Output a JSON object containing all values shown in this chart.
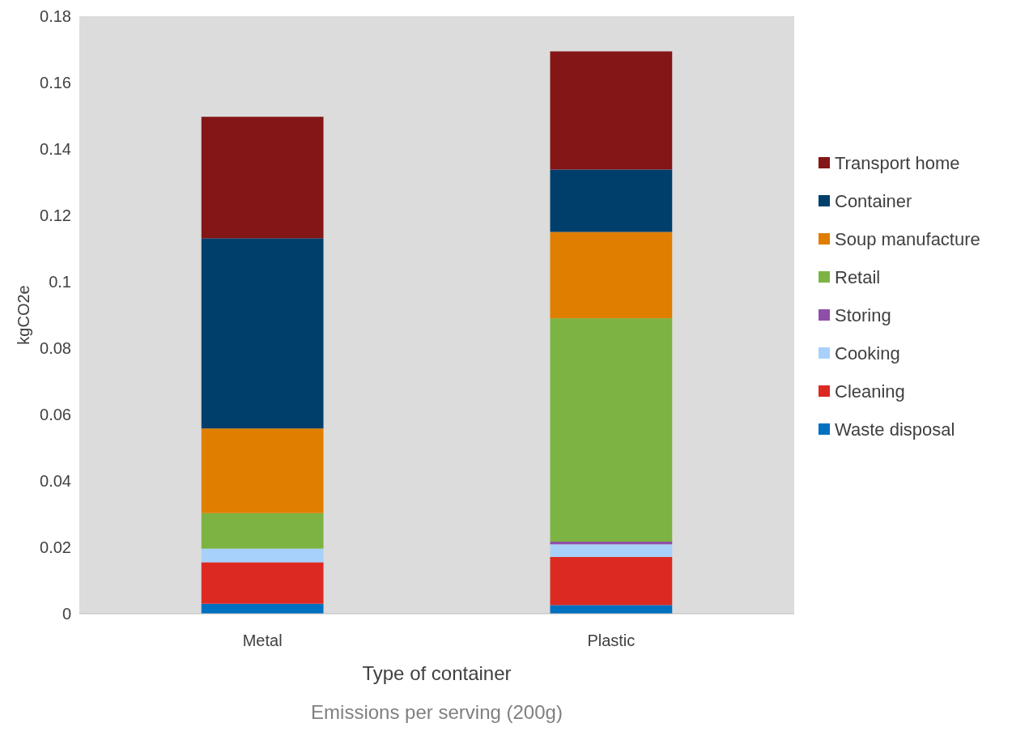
{
  "chart_data": {
    "type": "bar",
    "stacked": true,
    "xlabel": "Type of container",
    "ylabel": "kgCO2e",
    "categories": [
      "Metal",
      "Plastic"
    ],
    "series": [
      {
        "name": "Waste disposal",
        "color": "#0070c0",
        "values": [
          0.003,
          0.0026
        ]
      },
      {
        "name": "Cleaning",
        "color": "#dc2a22",
        "values": [
          0.0125,
          0.0145
        ]
      },
      {
        "name": "Cooking",
        "color": "#a7d1fa",
        "values": [
          0.0041,
          0.0038
        ]
      },
      {
        "name": "Storing",
        "color": "#8f4fa8",
        "values": [
          0,
          0.0008
        ]
      },
      {
        "name": "Retail",
        "color": "#7db343",
        "values": [
          0.0107,
          0.0673
        ]
      },
      {
        "name": "Soup manufacture",
        "color": "#e07e00",
        "values": [
          0.0255,
          0.026
        ]
      },
      {
        "name": "Container",
        "color": "#003f6b",
        "values": [
          0.0573,
          0.0188
        ]
      },
      {
        "name": "Transport home",
        "color": "#841617",
        "values": [
          0.0366,
          0.0356
        ]
      }
    ],
    "ylim": [
      0,
      0.18
    ],
    "yticks": [
      0,
      0.02,
      0.04,
      0.06,
      0.08,
      0.1,
      0.12,
      0.14,
      0.16,
      0.18
    ],
    "grid": false,
    "legend": "right",
    "annotations": [
      "Emissions per serving (200g)"
    ]
  }
}
